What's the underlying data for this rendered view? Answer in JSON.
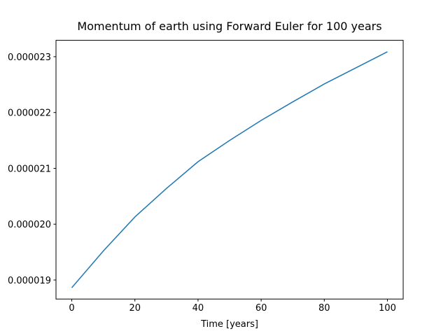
{
  "chart_data": {
    "type": "line",
    "title": "Momentum of earth using Forward Euler for 100 years",
    "x_label": "Time [years]",
    "x": [
      0,
      10,
      20,
      30,
      40,
      50,
      60,
      70,
      80,
      90,
      100
    ],
    "series": [
      {
        "color": "#1f77b4",
        "values": [
          1.8862e-05,
          1.952e-05,
          2.0129e-05,
          2.064e-05,
          2.1119e-05,
          2.15e-05,
          2.1859e-05,
          2.219e-05,
          2.2511e-05,
          2.28e-05,
          2.3088e-05
        ]
      }
    ],
    "xlim": [
      -5,
      105
    ],
    "xticks": [
      0,
      20,
      40,
      60,
      80,
      100
    ],
    "ylim": [
      1.8659e-05,
      2.3293e-05
    ],
    "yticks": [
      {
        "value": 1.9e-05,
        "label": "0.000019"
      },
      {
        "value": 2e-05,
        "label": "0.000020"
      },
      {
        "value": 2.1e-05,
        "label": "0.000021"
      },
      {
        "value": 2.2e-05,
        "label": "0.000022"
      },
      {
        "value": 2.3e-05,
        "label": "0.000023"
      }
    ]
  }
}
